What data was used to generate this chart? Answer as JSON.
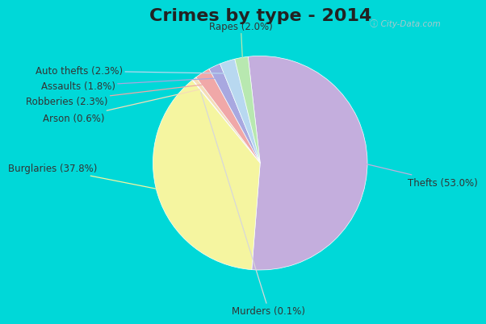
{
  "title": "Crimes by type - 2014",
  "title_fontsize": 16,
  "title_fontweight": "bold",
  "wedge_order": [
    "Thefts",
    "Burglaries",
    "Murders",
    "Arson",
    "Robberies",
    "Assaults",
    "Auto thefts",
    "Rapes"
  ],
  "values": [
    53.0,
    37.8,
    0.1,
    0.6,
    2.3,
    1.8,
    2.3,
    2.0
  ],
  "colors": [
    "#c4aedd",
    "#f5f5a0",
    "#d8d8d8",
    "#f5ddb8",
    "#f0a8a8",
    "#a8a8e0",
    "#b8d8f0",
    "#b8e8b0"
  ],
  "label_display": [
    "Thefts (53.0%)",
    "Burglaries (37.8%)",
    "Murders (0.1%)",
    "Arson (0.6%)",
    "Robberies (2.3%)",
    "Assaults (1.8%)",
    "Auto thefts (2.3%)",
    "Rapes (2.0%)"
  ],
  "background_outer": "#00d8d8",
  "background_inner_top_left": "#c8e8d8",
  "background_inner_bottom_right": "#e8f4f0",
  "start_angle": 96.48,
  "figsize": [
    6.0,
    4.0
  ],
  "dpi": 100,
  "label_positions": {
    "Thefts": [
      1.38,
      -0.18,
      "left"
    ],
    "Burglaries": [
      -1.52,
      -0.05,
      "right"
    ],
    "Murders": [
      0.08,
      -1.38,
      "center"
    ],
    "Arson": [
      -1.45,
      0.42,
      "right"
    ],
    "Robberies": [
      -1.42,
      0.58,
      "right"
    ],
    "Assaults": [
      -1.35,
      0.72,
      "right"
    ],
    "Auto thefts": [
      -1.28,
      0.86,
      "right"
    ],
    "Rapes": [
      -0.18,
      1.28,
      "center"
    ]
  },
  "line_colors": {
    "Thefts": "#c4aedd",
    "Burglaries": "#f5f5a0",
    "Murders": "#d8d8d8",
    "Arson": "#f5ddb8",
    "Robberies": "#f0a8a8",
    "Assaults": "#a8a8e0",
    "Auto thefts": "#b8d8f0",
    "Rapes": "#b8e8b0"
  }
}
